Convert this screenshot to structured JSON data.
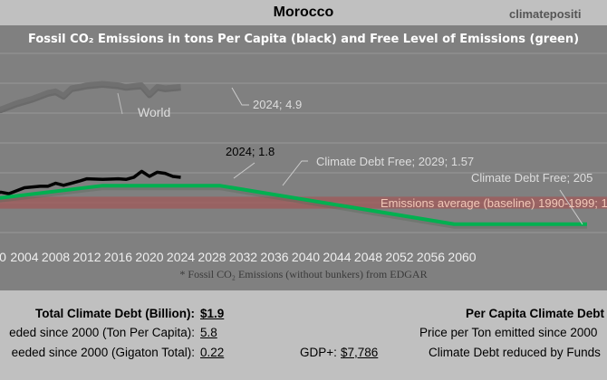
{
  "header": {
    "country": "Morocco",
    "site": "climatepositi"
  },
  "chart_data": {
    "type": "line",
    "title": "Fossil CO₂ Emissions in tons Per Capita (black) and Free Level of Emissions (green)",
    "xlim": [
      1999,
      2076
    ],
    "ylim": [
      0,
      6
    ],
    "grid": true,
    "x_ticks": [
      "2004",
      "2008",
      "2012",
      "2016",
      "2020",
      "2024",
      "2028",
      "2032",
      "2036",
      "2040",
      "2044",
      "2048",
      "2052",
      "2056",
      "2060"
    ],
    "first_tick_partial": "0",
    "series": [
      {
        "name": "World",
        "color": "#707070",
        "points": [
          [
            1999,
            4.1
          ],
          [
            2001,
            4.15
          ],
          [
            2003,
            4.35
          ],
          [
            2005,
            4.5
          ],
          [
            2007,
            4.7
          ],
          [
            2008,
            4.75
          ],
          [
            2009,
            4.6
          ],
          [
            2010,
            4.85
          ],
          [
            2012,
            4.95
          ],
          [
            2014,
            5.0
          ],
          [
            2016,
            4.95
          ],
          [
            2017,
            4.9
          ],
          [
            2019,
            4.95
          ],
          [
            2020,
            4.65
          ],
          [
            2021,
            4.9
          ],
          [
            2022,
            4.85
          ],
          [
            2024,
            4.9
          ]
        ]
      },
      {
        "name": "Morocco",
        "color": "#000000",
        "points": [
          [
            1999,
            1.3
          ],
          [
            2001,
            1.35
          ],
          [
            2002,
            1.3
          ],
          [
            2004,
            1.5
          ],
          [
            2006,
            1.55
          ],
          [
            2007,
            1.55
          ],
          [
            2008,
            1.65
          ],
          [
            2009,
            1.58
          ],
          [
            2010,
            1.65
          ],
          [
            2011,
            1.72
          ],
          [
            2012,
            1.8
          ],
          [
            2014,
            1.78
          ],
          [
            2016,
            1.8
          ],
          [
            2017,
            1.78
          ],
          [
            2018,
            1.85
          ],
          [
            2019,
            2.05
          ],
          [
            2020,
            1.88
          ],
          [
            2021,
            2.02
          ],
          [
            2022,
            1.98
          ],
          [
            2023,
            1.88
          ],
          [
            2024,
            1.85
          ]
        ]
      },
      {
        "name": "Free Level of Emissions",
        "color": "#00b050",
        "points": [
          [
            1999,
            1.1
          ],
          [
            2014,
            1.57
          ],
          [
            2029,
            1.57
          ],
          [
            2059,
            0.28
          ],
          [
            2076,
            0.28
          ]
        ]
      }
    ],
    "baseline_band": {
      "low": 0.8,
      "high": 1.2,
      "color": "#a05858"
    },
    "annotations": {
      "world": "World",
      "world_last": "2024; 4.9",
      "morocco_last": "2024; 1.8",
      "debt_free_1": "Climate Debt Free; 2029; 1.57",
      "debt_free_2": "Climate Debt Free; 205",
      "baseline": "Emissions average (baseline) 1990-1999; 1"
    },
    "footnote": "* Fossil CO₂ Emissions (without bunkers) from EDGAR"
  },
  "stats": {
    "total_label": "Total Climate Debt (Billion):",
    "total_value": "$1.9",
    "ton_label": "eded since 2000 (Ton Per Capita):",
    "ton_value": "5.8",
    "giga_label": "eeded since 2000 (Gigaton Total):",
    "giga_value": "0.22",
    "gdp_label": "GDP+:",
    "gdp_value": "$7,786",
    "per_capita_label": "Per Capita Climate Debt",
    "price_label": "Price per Ton emitted since 2000",
    "funds_label": "Climate Debt reduced by Funds"
  }
}
